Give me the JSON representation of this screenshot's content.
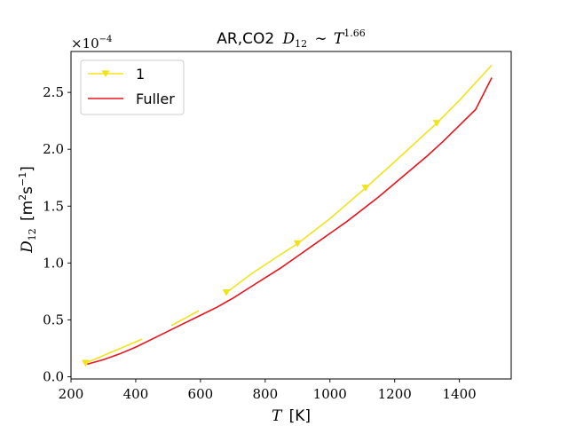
{
  "chart_data": {
    "type": "line",
    "title_prefix": "AR,CO2",
    "title_math_base": "D",
    "title_math_sub": "12",
    "title_math_op": "∼",
    "title_math_rhs": "T",
    "title_math_exp": "1.66",
    "xlabel_math": "T",
    "xlabel_unit": "[K]",
    "ylabel_math": "D",
    "ylabel_sub": "12",
    "ylabel_unit_open": "[m",
    "ylabel_unit_sq": "2",
    "ylabel_unit_s": "s",
    "ylabel_unit_exp": "−1",
    "ylabel_unit_close": "]",
    "offset_text_base": "×10",
    "offset_text_exp": "−4",
    "xlim": [
      200,
      1560
    ],
    "ylim": [
      -0.02,
      2.86
    ],
    "xticks": [
      200,
      400,
      600,
      800,
      1000,
      1200,
      1400
    ],
    "xtick_labels": [
      "200",
      "400",
      "600",
      "800",
      "1000",
      "1200",
      "1400"
    ],
    "yticks": [
      0.0,
      0.5,
      1.0,
      1.5,
      2.0,
      2.5
    ],
    "ytick_labels": [
      "0.0",
      "0.5",
      "1.0",
      "1.5",
      "2.0",
      "2.5"
    ],
    "legend_position": "upper-left",
    "series": [
      {
        "name": "1",
        "color": "#f2e21b",
        "marker": "triangle-down",
        "segments": [
          {
            "x": [
              245,
              420
            ],
            "y": [
              0.12,
              0.33
            ]
          },
          {
            "x": [
              510,
              595
            ],
            "y": [
              0.45,
              0.58
            ]
          },
          {
            "x": [
              680,
              760,
              840,
              900,
              1000,
              1110,
              1200,
              1330,
              1400,
              1500
            ],
            "y": [
              0.74,
              0.91,
              1.06,
              1.17,
              1.39,
              1.66,
              1.89,
              2.23,
              2.43,
              2.74
            ]
          }
        ],
        "markers_x": [
          245,
          680,
          900,
          1110,
          1330
        ],
        "markers_y": [
          0.12,
          0.74,
          1.17,
          1.66,
          2.23
        ]
      },
      {
        "name": "Fuller",
        "color": "#e8131b",
        "x": [
          250,
          300,
          350,
          400,
          450,
          500,
          550,
          600,
          650,
          700,
          750,
          800,
          850,
          900,
          950,
          1000,
          1050,
          1100,
          1150,
          1200,
          1250,
          1300,
          1350,
          1400,
          1450,
          1500
        ],
        "y": [
          0.11,
          0.15,
          0.2,
          0.26,
          0.33,
          0.4,
          0.47,
          0.54,
          0.61,
          0.69,
          0.78,
          0.87,
          0.96,
          1.06,
          1.16,
          1.26,
          1.36,
          1.47,
          1.58,
          1.7,
          1.82,
          1.94,
          2.07,
          2.21,
          2.35,
          2.63
        ]
      }
    ]
  }
}
